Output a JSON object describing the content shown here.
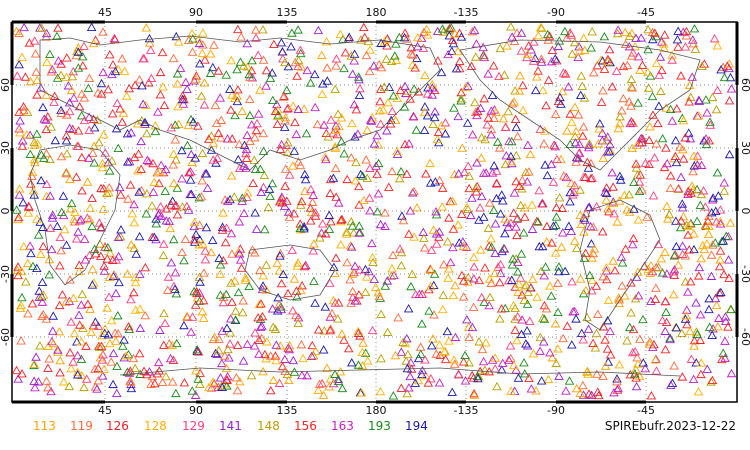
{
  "map": {
    "x_ticks_top": [
      "45",
      "90",
      "135",
      "180",
      "-135",
      "-90",
      "-45"
    ],
    "x_ticks_bottom": [
      "45",
      "90",
      "135",
      "180",
      "-135",
      "-90",
      "-45"
    ],
    "y_ticks_left": [
      "60",
      "30",
      "0",
      "-30",
      "-60"
    ],
    "y_ticks_right": [
      "60",
      "30",
      "0",
      "-30",
      "-60"
    ],
    "grid": "dotted",
    "marker": "open-triangle",
    "land_outline_color": "#555555"
  },
  "legend": {
    "items": [
      {
        "label": "113",
        "color": "#ffa500"
      },
      {
        "label": "119",
        "color": "#ff6a3d"
      },
      {
        "label": "126",
        "color": "#e8202a"
      },
      {
        "label": "128",
        "color": "#ffb300"
      },
      {
        "label": "129",
        "color": "#ff3f7f"
      },
      {
        "label": "141",
        "color": "#9b1fd1"
      },
      {
        "label": "148",
        "color": "#b8a000"
      },
      {
        "label": "156",
        "color": "#ff2020"
      },
      {
        "label": "163",
        "color": "#c21fc2"
      },
      {
        "label": "193",
        "color": "#1a8a1a"
      },
      {
        "label": "194",
        "color": "#1a1aaa"
      }
    ]
  },
  "source_label": "SPIREbufr.2023-12-22"
}
